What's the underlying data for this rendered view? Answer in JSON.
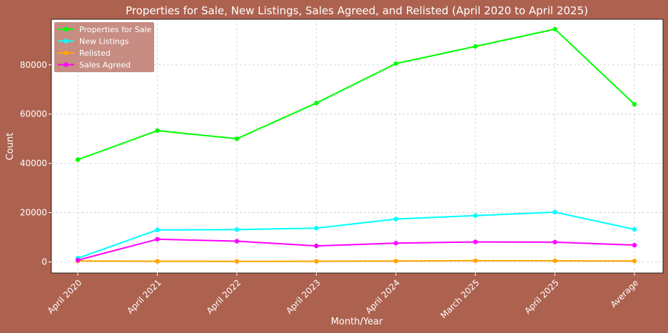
{
  "chart_data": {
    "type": "line",
    "title": "Properties for Sale, New Listings, Sales Agreed, and Relisted (April 2020 to April 2025)",
    "xlabel": "Month/Year",
    "ylabel": "Count",
    "categories": [
      "April 2020",
      "April 2021",
      "April 2022",
      "April 2023",
      "April 2024",
      "March 2025",
      "April 2025",
      "Average"
    ],
    "ylim": [
      -4500,
      98500
    ],
    "yticks": [
      0,
      20000,
      40000,
      60000,
      80000
    ],
    "grid": true,
    "legend_position": "top-left",
    "series": [
      {
        "name": "Properties for Sale",
        "color": "#00ff00",
        "values": [
          41500,
          53300,
          50000,
          64500,
          80500,
          87500,
          94500,
          64000
        ]
      },
      {
        "name": "New Listings",
        "color": "#00ffff",
        "values": [
          1500,
          13000,
          13100,
          13700,
          17400,
          18800,
          20200,
          13200
        ]
      },
      {
        "name": "Relisted",
        "color": "#ffa500",
        "values": [
          400,
          250,
          200,
          250,
          350,
          500,
          450,
          350
        ]
      },
      {
        "name": "Sales Agreed",
        "color": "#ff00ff",
        "values": [
          700,
          9200,
          8400,
          6500,
          7600,
          8100,
          8000,
          6800
        ]
      }
    ],
    "colors": {
      "background": "#ad614f",
      "plot_area": "#ffffff",
      "legend_box": "#c4877b"
    }
  }
}
